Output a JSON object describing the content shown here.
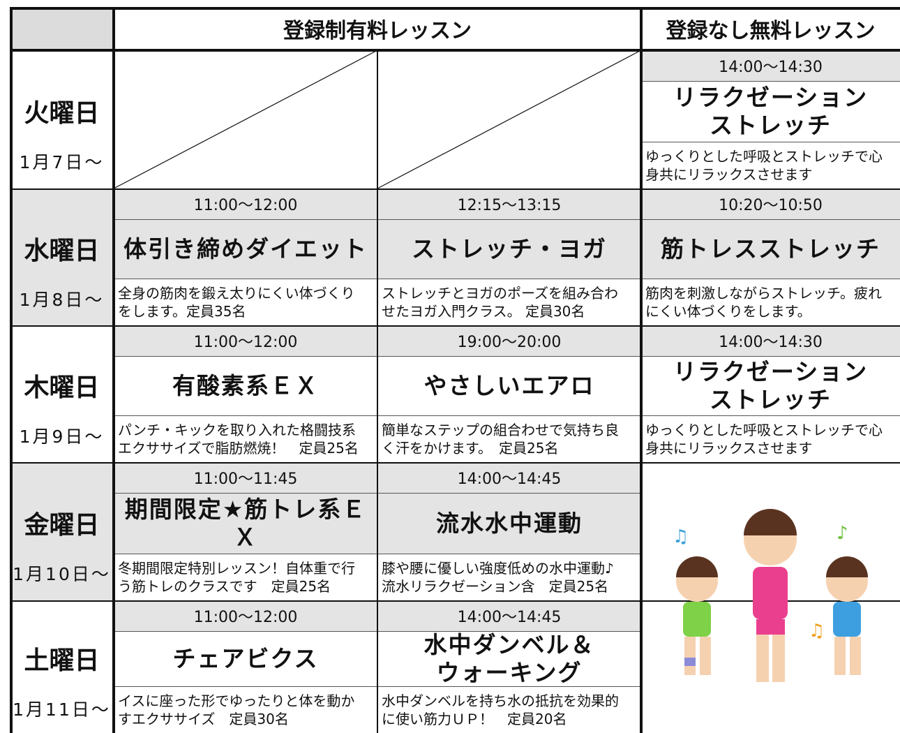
{
  "header": {
    "paid": "登録制有料レッスン",
    "free": "登録なし無料レッスン"
  },
  "days": [
    {
      "name": "火曜日",
      "date": "1月7日〜",
      "paid": [],
      "free": {
        "time": "14:00〜14:30",
        "title": "リラクゼーション\nストレッチ",
        "description": "ゆっくりとした呼吸とストレッチで心\n身共にリラックスさせます"
      }
    },
    {
      "name": "水曜日",
      "date": "1月8日〜",
      "paid": [
        {
          "time": "11:00〜12:00",
          "title": "体引き締めダイエット",
          "description": "全身の筋肉を鍛え太りにくい体づくり\nをします。定員35名"
        },
        {
          "time": "12:15〜13:15",
          "title": "ストレッチ・ヨガ",
          "description": "ストレッチとヨガのポーズを組み合わ\nせたヨガ入門クラス。 定員30名"
        }
      ],
      "free": {
        "time": "10:20〜10:50",
        "title": "筋トレスストレッチ",
        "description": "筋肉を刺激しながらストレッチ。疲れ\nにくい体づくりをします。"
      }
    },
    {
      "name": "木曜日",
      "date": "1月9日〜",
      "paid": [
        {
          "time": "11:00〜12:00",
          "title": "有酸素系ＥＸ",
          "description": "パンチ・キックを取り入れた格闘技系\nエクササイズで脂肪燃焼！　定員25名"
        },
        {
          "time": "19:00〜20:00",
          "title": "やさしいエアロ",
          "description": "簡単なステップの組合わせで気持ち良\nく汗をかけます。　定員25名"
        }
      ],
      "free": {
        "time": "14:00〜14:30",
        "title": "リラクゼーション\nストレッチ",
        "description": "ゆっくりとした呼吸とストレッチで心\n身共にリラックスさせます"
      }
    },
    {
      "name": "金曜日",
      "date": "1月10日〜",
      "paid": [
        {
          "time": "11:00〜11:45",
          "title": "期間限定★筋トレ系ＥＸ",
          "description": "冬期間限定特別レッスン！自体重で行\nう筋トレのクラスです　定員25名"
        },
        {
          "time": "14:00〜14:45",
          "title": "流水水中運動",
          "description": "膝や腰に優しい強度低めの水中運動♪\n流水リラクゼーション含　定員25名"
        }
      ]
    },
    {
      "name": "土曜日",
      "date": "1月11日〜",
      "paid": [
        {
          "time": "11:00〜12:00",
          "title": "チェアビクス",
          "description": "イスに座った形でゆったりと体を動か\nすエクササイズ　定員30名"
        },
        {
          "time": "14:00〜14:45",
          "title": "水中ダンベル＆\nウォーキング",
          "description": "水中ダンベルを持ち水の抵抗を効果的\nに使い筋力ＵＰ！　定員20名"
        }
      ]
    }
  ]
}
